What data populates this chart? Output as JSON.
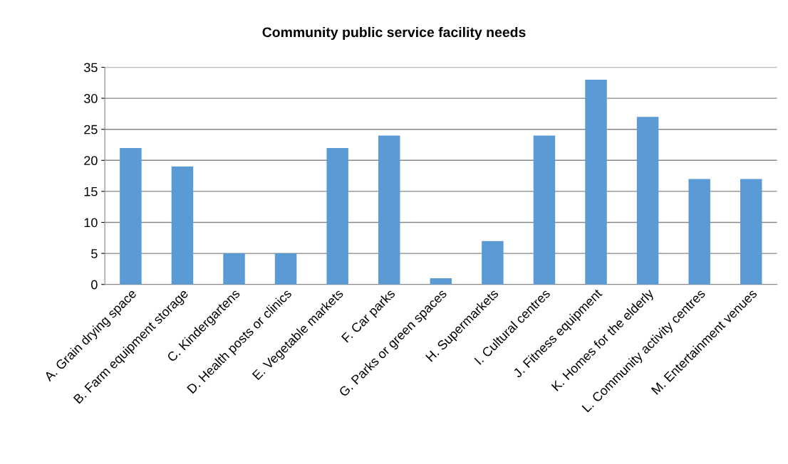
{
  "chart_data": {
    "type": "bar",
    "title": "Community public service facility needs",
    "categories": [
      "A. Grain drying space",
      "B. Farm equipment storage",
      "C. Kindergartens",
      "D. Health posts or clinics",
      "E. Vegetable markets",
      "F. Car parks",
      "G. Parks or green spaces",
      "H. Supermarkets",
      "I. Cultural centres",
      "J. Fitness equipment",
      "K. Homes for the elderly",
      "L. Community activity centres",
      "M. Entertainment venues"
    ],
    "values": [
      22,
      19,
      5,
      5,
      22,
      24,
      1,
      7,
      24,
      33,
      27,
      17,
      17
    ],
    "color": "#5b9bd5",
    "ylim": [
      0,
      35
    ],
    "yticks": [
      0,
      5,
      10,
      15,
      20,
      25,
      30,
      35
    ],
    "grid": "y",
    "legend": false
  }
}
